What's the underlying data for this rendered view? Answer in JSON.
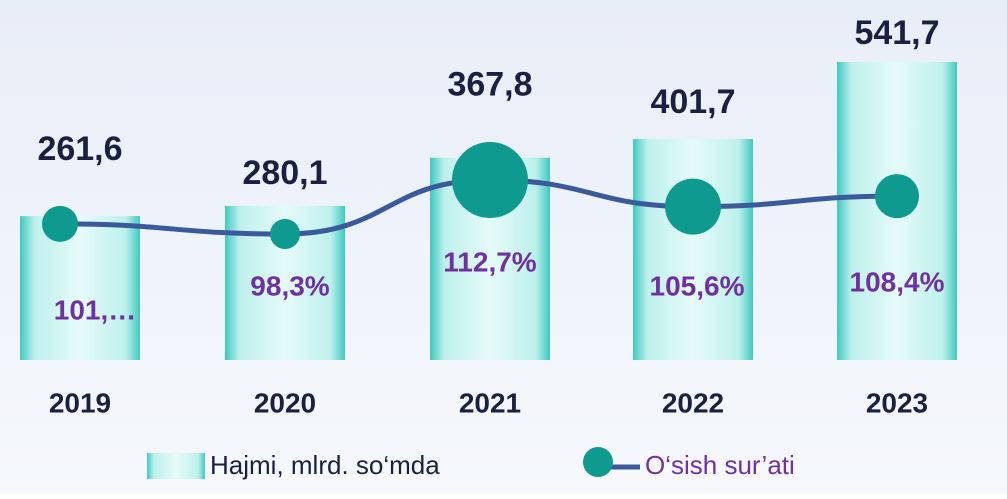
{
  "chart_data": {
    "type": "bar-line",
    "categories": [
      "2019",
      "2020",
      "2021",
      "2022",
      "2023"
    ],
    "series": [
      {
        "name": "Hajmi, mlrd. so‘mda",
        "type": "bar",
        "color": "#3fc9c0",
        "values": [
          261.6,
          280.1,
          367.8,
          401.7,
          541.7
        ],
        "value_labels": [
          "261,6",
          "280,1",
          "367,8",
          "401,7",
          "541,7"
        ]
      },
      {
        "name": "O‘sish sur’ati",
        "type": "line",
        "axis": "y2",
        "color": "#3a5a9c",
        "marker_color": "#0e9a8f",
        "values": [
          101,
          98.3,
          112.7,
          105.6,
          108.4
        ],
        "value_labels": [
          "101,…",
          "98,3%",
          "112,7%",
          "105,6%",
          "108,4%"
        ]
      }
    ]
  }
}
